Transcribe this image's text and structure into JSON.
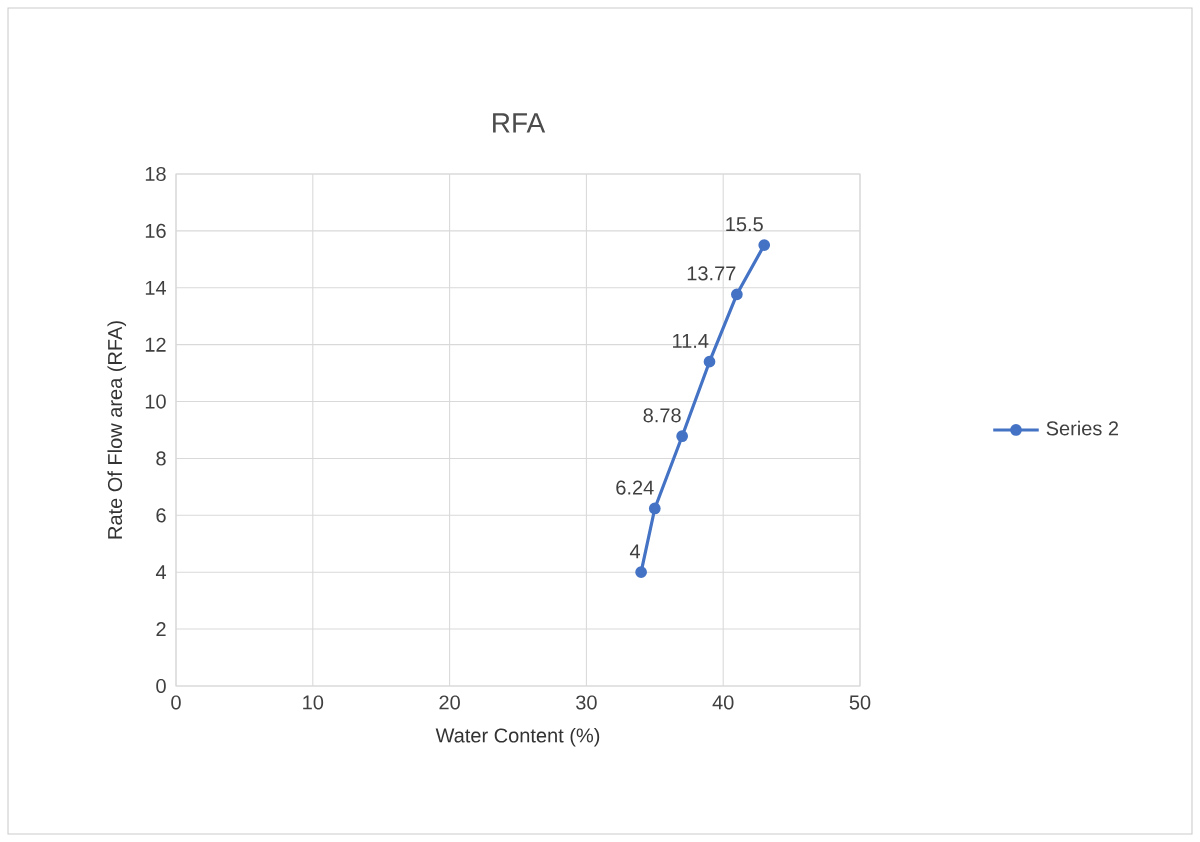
{
  "chart_data": {
    "type": "line",
    "title": "RFA",
    "xlabel": "Water Content (%)",
    "ylabel": "Rate Of Flow area (RFA)",
    "series": [
      {
        "name": "Series 2",
        "color": "#4472c4",
        "x": [
          34,
          35,
          37,
          39,
          41,
          43
        ],
        "values": [
          4,
          6.24,
          8.78,
          11.4,
          13.77,
          15.5
        ]
      }
    ],
    "xlim": [
      0,
      50
    ],
    "xticks": [
      0,
      10,
      20,
      30,
      40,
      50
    ],
    "ylim": [
      0,
      18
    ],
    "yticks": [
      0,
      2,
      4,
      6,
      8,
      10,
      12,
      14,
      16,
      18
    ],
    "grid": true,
    "legend": "right",
    "marker": "circle",
    "line_style": "solid",
    "data_labels": true
  }
}
